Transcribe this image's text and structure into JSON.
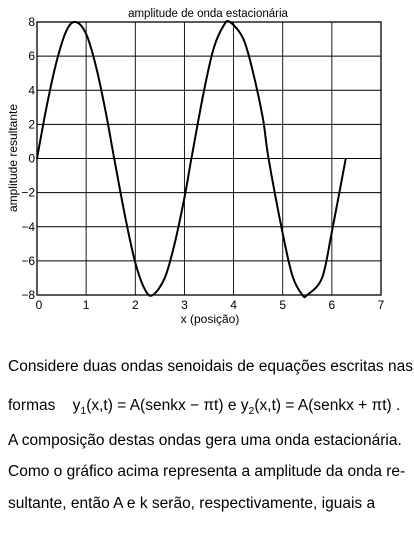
{
  "chart_data": {
    "type": "line",
    "title": "amplitude de onda estacionária",
    "xlabel": "x (posição)",
    "ylabel": "amplitude resultante",
    "xlim": [
      0,
      7
    ],
    "ylim": [
      -8,
      8
    ],
    "x_ticks": [
      "0",
      "1",
      "2",
      "3",
      "4",
      "5",
      "6",
      "7"
    ],
    "y_ticks": [
      "8",
      "6",
      "4",
      "2",
      "0",
      "−2",
      "−4",
      "−6",
      "−8"
    ],
    "grid": true,
    "series": [
      {
        "x": [
          0,
          0.2,
          0.4,
          0.6,
          0.785,
          1.0,
          1.2,
          1.4,
          1.571,
          1.8,
          2.0,
          2.2,
          2.356,
          2.6,
          2.8,
          3.0,
          3.142,
          3.4,
          3.6,
          3.8,
          3.927,
          4.2,
          4.4,
          4.6,
          4.712,
          5.0,
          5.2,
          5.4,
          5.498,
          5.8,
          6.0,
          6.283
        ],
        "y": [
          0,
          3.1,
          5.7,
          7.5,
          8,
          7.3,
          5.4,
          2.7,
          0,
          -3.5,
          -6.1,
          -7.7,
          -8,
          -7.0,
          -5.0,
          -2.3,
          0,
          4.0,
          6.5,
          7.8,
          8,
          7.0,
          5.0,
          2.3,
          0,
          -4.4,
          -6.9,
          -8.0,
          -8,
          -7.0,
          -4.3,
          0
        ]
      }
    ]
  },
  "text": {
    "line1": "Considere duas ondas senoidais de equações escritas nas",
    "line2_prefix": "formas",
    "eq1_y": "y",
    "eq1_sub": "1",
    "eq1_rest": "(x,t) = A(senkx − πt)",
    "conj": "e",
    "eq2_y": "y",
    "eq2_sub": "2",
    "eq2_rest": "(x,t) = A(senkx + πt)",
    "period": ".",
    "line3": "A composição destas ondas gera uma onda estacionária.",
    "line4": "Como o gráfico acima representa a amplitude da onda re-",
    "line5": "sultante, então A e k serão, respectivamente, iguais a"
  }
}
